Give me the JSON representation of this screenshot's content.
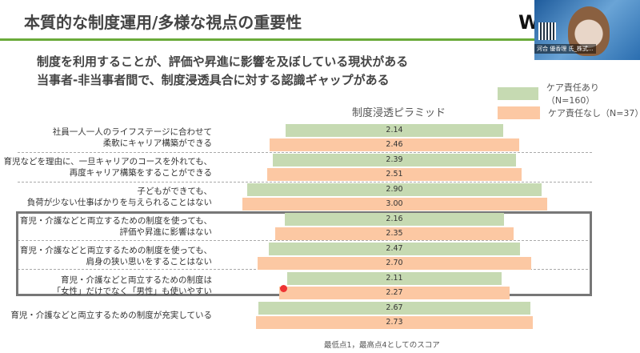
{
  "slide": {
    "title": "本質的な制度運用/多様な視点の重要性",
    "logo": "W",
    "subtitles": [
      "制度を利用することが、評価や昇進に影響を及ぼしている現状がある",
      "当事者-非当事者間で、制度浸透具合に対する認識ギャップがある"
    ],
    "footnote": "最低点1，最高点4としてのスコア"
  },
  "video": {
    "participant_name": "河合 優香理 氏_株式..."
  },
  "chart_data": {
    "type": "bar",
    "orientation": "horizontal-centered",
    "title": "制度浸透ピラミッド",
    "xlim": [
      0,
      4
    ],
    "categories": [
      [
        "社員一人一人のライフステージに合わせて",
        "柔軟にキャリア構築ができる"
      ],
      [
        "育児などを理由に、一旦キャリアのコースを外れても、",
        "再度キャリア構築をすることができる"
      ],
      [
        "子どもができても、",
        "負荷が少ない仕事ばかりを与えられることはない"
      ],
      [
        "育児・介護などと両立するための制度を使っても、",
        "評価や昇進に影響はない"
      ],
      [
        "育児・介護などと両立するための制度を使っても、",
        "肩身の狭い思いをすることはない"
      ],
      [
        "育児・介護などと両立するための制度は",
        "「女性」だけでなく「男性」も使いやすい"
      ],
      [
        "育児・介護などと両立するための制度が充実している"
      ]
    ],
    "series": [
      {
        "name": "ケア責任あり（N=160）",
        "color": "#c6dab2",
        "values": [
          2.14,
          2.39,
          2.9,
          2.16,
          2.47,
          2.11,
          2.67
        ]
      },
      {
        "name": "ケア責任なし（N=37）",
        "color": "#fcc8a3",
        "values": [
          2.46,
          2.51,
          3.0,
          2.35,
          2.7,
          2.27,
          2.73
        ]
      }
    ],
    "legend": "top-right"
  }
}
